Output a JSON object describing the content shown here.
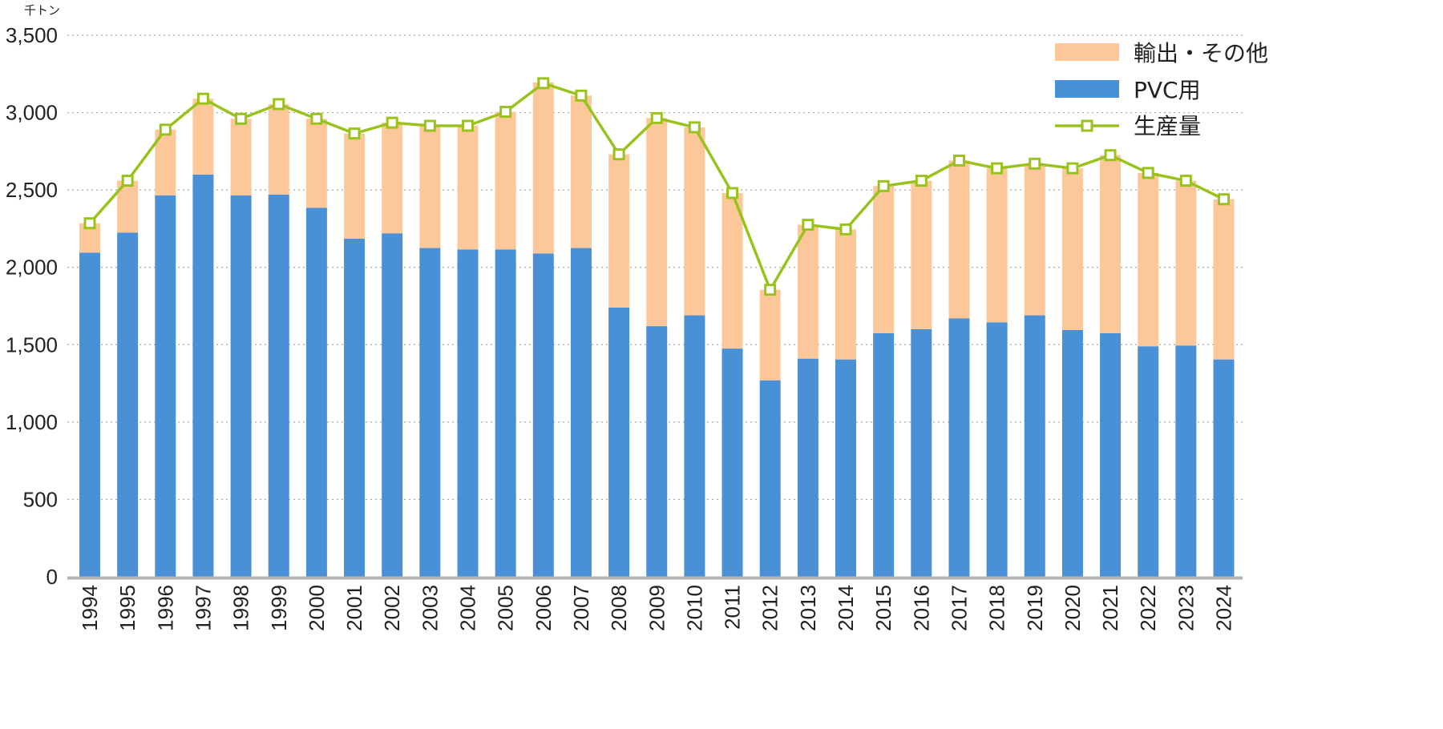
{
  "chart_data": {
    "type": "bar",
    "stacked": true,
    "unit_label": "千トン",
    "title": "",
    "xlabel": "",
    "ylabel": "",
    "ylim": [
      0,
      3500
    ],
    "yticks": [
      0,
      500,
      1000,
      1500,
      2000,
      2500,
      3000,
      3500
    ],
    "ytick_labels": [
      "0",
      "500",
      "1,000",
      "1,500",
      "2,000",
      "2,500",
      "3,000",
      "3,500"
    ],
    "grid": true,
    "legend_position": "top-right",
    "categories": [
      "1994",
      "1995",
      "1996",
      "1997",
      "1998",
      "1999",
      "2000",
      "2001",
      "2002",
      "2003",
      "2004",
      "2005",
      "2006",
      "2007",
      "2008",
      "2009",
      "2010",
      "2011",
      "2012",
      "2013",
      "2014",
      "2015",
      "2016",
      "2017",
      "2018",
      "2019",
      "2020",
      "2021",
      "2022",
      "2023",
      "2024"
    ],
    "series": [
      {
        "name": "PVC用",
        "kind": "bar",
        "color": "#4a90d6",
        "values": [
          2095,
          2225,
          2465,
          2600,
          2465,
          2470,
          2385,
          2185,
          2220,
          2125,
          2115,
          2115,
          2090,
          2125,
          1740,
          1620,
          1690,
          1475,
          1270,
          1410,
          1405,
          1575,
          1600,
          1670,
          1645,
          1690,
          1595,
          1575,
          1490,
          1495,
          1405
        ]
      },
      {
        "name": "輸出・その他",
        "kind": "bar",
        "color": "#fdc899",
        "values": [
          190,
          335,
          425,
          490,
          495,
          585,
          575,
          680,
          715,
          790,
          800,
          890,
          1105,
          985,
          990,
          1345,
          1215,
          1005,
          585,
          865,
          840,
          950,
          960,
          1020,
          995,
          980,
          1045,
          1150,
          1120,
          1065,
          1035
        ]
      },
      {
        "name": "生産量",
        "kind": "line",
        "color": "#99c31c",
        "values": [
          2285,
          2560,
          2890,
          3090,
          2960,
          3055,
          2960,
          2865,
          2935,
          2915,
          2915,
          3005,
          3190,
          3110,
          2730,
          2965,
          2905,
          2480,
          1855,
          2275,
          2245,
          2525,
          2560,
          2690,
          2640,
          2670,
          2640,
          2725,
          2610,
          2560,
          2440
        ]
      }
    ],
    "legend": [
      {
        "label": "輸出・その他",
        "kind": "bar",
        "color": "#fdc899"
      },
      {
        "label": "PVC用",
        "kind": "bar",
        "color": "#4a90d6"
      },
      {
        "label": "生産量",
        "kind": "line",
        "color": "#99c31c"
      }
    ],
    "axis_color": "#b4b4b4",
    "grid_color": "#a8a8a8"
  }
}
